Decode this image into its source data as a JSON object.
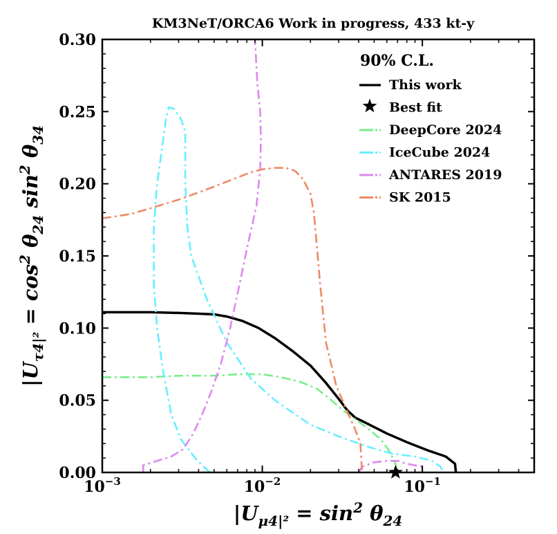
{
  "chart_data": {
    "type": "line",
    "title": "KM3NeT/ORCA6 Work in progress, 433 kt-y",
    "xlabel": "|U_μ4|² = sin² θ_24",
    "ylabel": "|U_τ4|² = cos² θ_24 sin² θ_34",
    "xscale": "log",
    "xlim": [
      0.001,
      0.5
    ],
    "ylim": [
      0.0,
      0.3
    ],
    "x_ticks": [
      0.001,
      0.01,
      0.1
    ],
    "x_tick_labels": [
      {
        "base": "10",
        "exp": "−3"
      },
      {
        "base": "10",
        "exp": "−2"
      },
      {
        "base": "10",
        "exp": "−1"
      }
    ],
    "y_ticks": [
      0.0,
      0.05,
      0.1,
      0.15,
      0.2,
      0.25,
      0.3
    ],
    "y_tick_labels": [
      "0.00",
      "0.05",
      "0.10",
      "0.15",
      "0.20",
      "0.25",
      "0.30"
    ],
    "legend_title": "90% C.L.",
    "legend_position": "top-right",
    "best_fit": {
      "label": "Best fit",
      "x": 0.068,
      "y": 0.0,
      "color": "#000000"
    },
    "series": [
      {
        "name": "This work",
        "color": "#000000",
        "style": "solid",
        "points": [
          [
            0.001,
            0.111
          ],
          [
            0.002,
            0.111
          ],
          [
            0.003,
            0.1105
          ],
          [
            0.004,
            0.11
          ],
          [
            0.005,
            0.1095
          ],
          [
            0.006,
            0.108
          ],
          [
            0.0075,
            0.105
          ],
          [
            0.0095,
            0.1
          ],
          [
            0.012,
            0.093
          ],
          [
            0.0155,
            0.084
          ],
          [
            0.02,
            0.074
          ],
          [
            0.025,
            0.062
          ],
          [
            0.03,
            0.051
          ],
          [
            0.034,
            0.043
          ],
          [
            0.038,
            0.038
          ],
          [
            0.045,
            0.034
          ],
          [
            0.06,
            0.027
          ],
          [
            0.08,
            0.021
          ],
          [
            0.11,
            0.015
          ],
          [
            0.14,
            0.011
          ],
          [
            0.16,
            0.006
          ],
          [
            0.162,
            0.0
          ]
        ]
      },
      {
        "name": "DeepCore 2024",
        "color": "#77ee88",
        "style": "dashdot",
        "points": [
          [
            0.001,
            0.066
          ],
          [
            0.002,
            0.066
          ],
          [
            0.003,
            0.067
          ],
          [
            0.005,
            0.067
          ],
          [
            0.007,
            0.068
          ],
          [
            0.01,
            0.068
          ],
          [
            0.013,
            0.066
          ],
          [
            0.017,
            0.063
          ],
          [
            0.022,
            0.058
          ],
          [
            0.027,
            0.05
          ],
          [
            0.032,
            0.043
          ],
          [
            0.038,
            0.037
          ],
          [
            0.045,
            0.031
          ],
          [
            0.055,
            0.023
          ],
          [
            0.062,
            0.015
          ],
          [
            0.068,
            0.006
          ],
          [
            0.07,
            0.0
          ]
        ]
      },
      {
        "name": "IceCube 2024",
        "color": "#66eeff",
        "style": "dashdot",
        "points": [
          [
            0.0047,
            0.0
          ],
          [
            0.0038,
            0.01
          ],
          [
            0.0031,
            0.023
          ],
          [
            0.0027,
            0.04
          ],
          [
            0.0024,
            0.07
          ],
          [
            0.0022,
            0.1
          ],
          [
            0.0021,
            0.13
          ],
          [
            0.0021,
            0.17
          ],
          [
            0.0022,
            0.2
          ],
          [
            0.0024,
            0.23
          ],
          [
            0.0025,
            0.245
          ],
          [
            0.0026,
            0.253
          ],
          [
            0.0028,
            0.252
          ],
          [
            0.0031,
            0.245
          ],
          [
            0.0033,
            0.236
          ],
          [
            0.0033,
            0.2
          ],
          [
            0.0034,
            0.17
          ],
          [
            0.0036,
            0.15
          ],
          [
            0.0045,
            0.12
          ],
          [
            0.006,
            0.09
          ],
          [
            0.0085,
            0.065
          ],
          [
            0.012,
            0.05
          ],
          [
            0.02,
            0.033
          ],
          [
            0.03,
            0.025
          ],
          [
            0.045,
            0.018
          ],
          [
            0.065,
            0.013
          ],
          [
            0.09,
            0.011
          ],
          [
            0.115,
            0.008
          ],
          [
            0.13,
            0.004
          ],
          [
            0.135,
            0.0
          ]
        ]
      },
      {
        "name": "ANTARES 2019",
        "color": "#dd88ee",
        "style": "dashdot",
        "points": [
          [
            0.0018,
            0.0
          ],
          [
            0.0018,
            0.005
          ],
          [
            0.0022,
            0.008
          ],
          [
            0.0027,
            0.011
          ],
          [
            0.0032,
            0.016
          ],
          [
            0.0037,
            0.027
          ],
          [
            0.0042,
            0.04
          ],
          [
            0.0048,
            0.056
          ],
          [
            0.0055,
            0.075
          ],
          [
            0.0063,
            0.1
          ],
          [
            0.0072,
            0.13
          ],
          [
            0.0082,
            0.16
          ],
          [
            0.0092,
            0.185
          ],
          [
            0.0097,
            0.21
          ],
          [
            0.0098,
            0.23
          ],
          [
            0.0097,
            0.25
          ],
          [
            0.0093,
            0.27
          ],
          [
            0.009,
            0.3
          ]
        ]
      },
      {
        "name": "ANTARES 2019 (lower branch)",
        "color": "#dd88ee",
        "style": "dashdot",
        "in_legend": false,
        "points": [
          [
            0.04,
            0.0
          ],
          [
            0.042,
            0.004
          ],
          [
            0.05,
            0.007
          ],
          [
            0.06,
            0.008
          ],
          [
            0.07,
            0.008
          ],
          [
            0.08,
            0.006
          ],
          [
            0.1,
            0.004
          ]
        ]
      },
      {
        "name": "SK 2015",
        "color": "#ee8866",
        "style": "dashdot",
        "points": [
          [
            0.001,
            0.176
          ],
          [
            0.0015,
            0.179
          ],
          [
            0.002,
            0.183
          ],
          [
            0.003,
            0.189
          ],
          [
            0.004,
            0.194
          ],
          [
            0.005,
            0.198
          ],
          [
            0.0065,
            0.203
          ],
          [
            0.0085,
            0.208
          ],
          [
            0.01,
            0.21
          ],
          [
            0.012,
            0.211
          ],
          [
            0.014,
            0.211
          ],
          [
            0.016,
            0.209
          ],
          [
            0.018,
            0.203
          ],
          [
            0.02,
            0.193
          ],
          [
            0.021,
            0.18
          ],
          [
            0.022,
            0.155
          ],
          [
            0.023,
            0.13
          ],
          [
            0.025,
            0.09
          ],
          [
            0.029,
            0.06
          ],
          [
            0.034,
            0.042
          ],
          [
            0.038,
            0.03
          ],
          [
            0.041,
            0.02
          ],
          [
            0.0415,
            0.01
          ],
          [
            0.042,
            0.0
          ]
        ]
      }
    ]
  }
}
